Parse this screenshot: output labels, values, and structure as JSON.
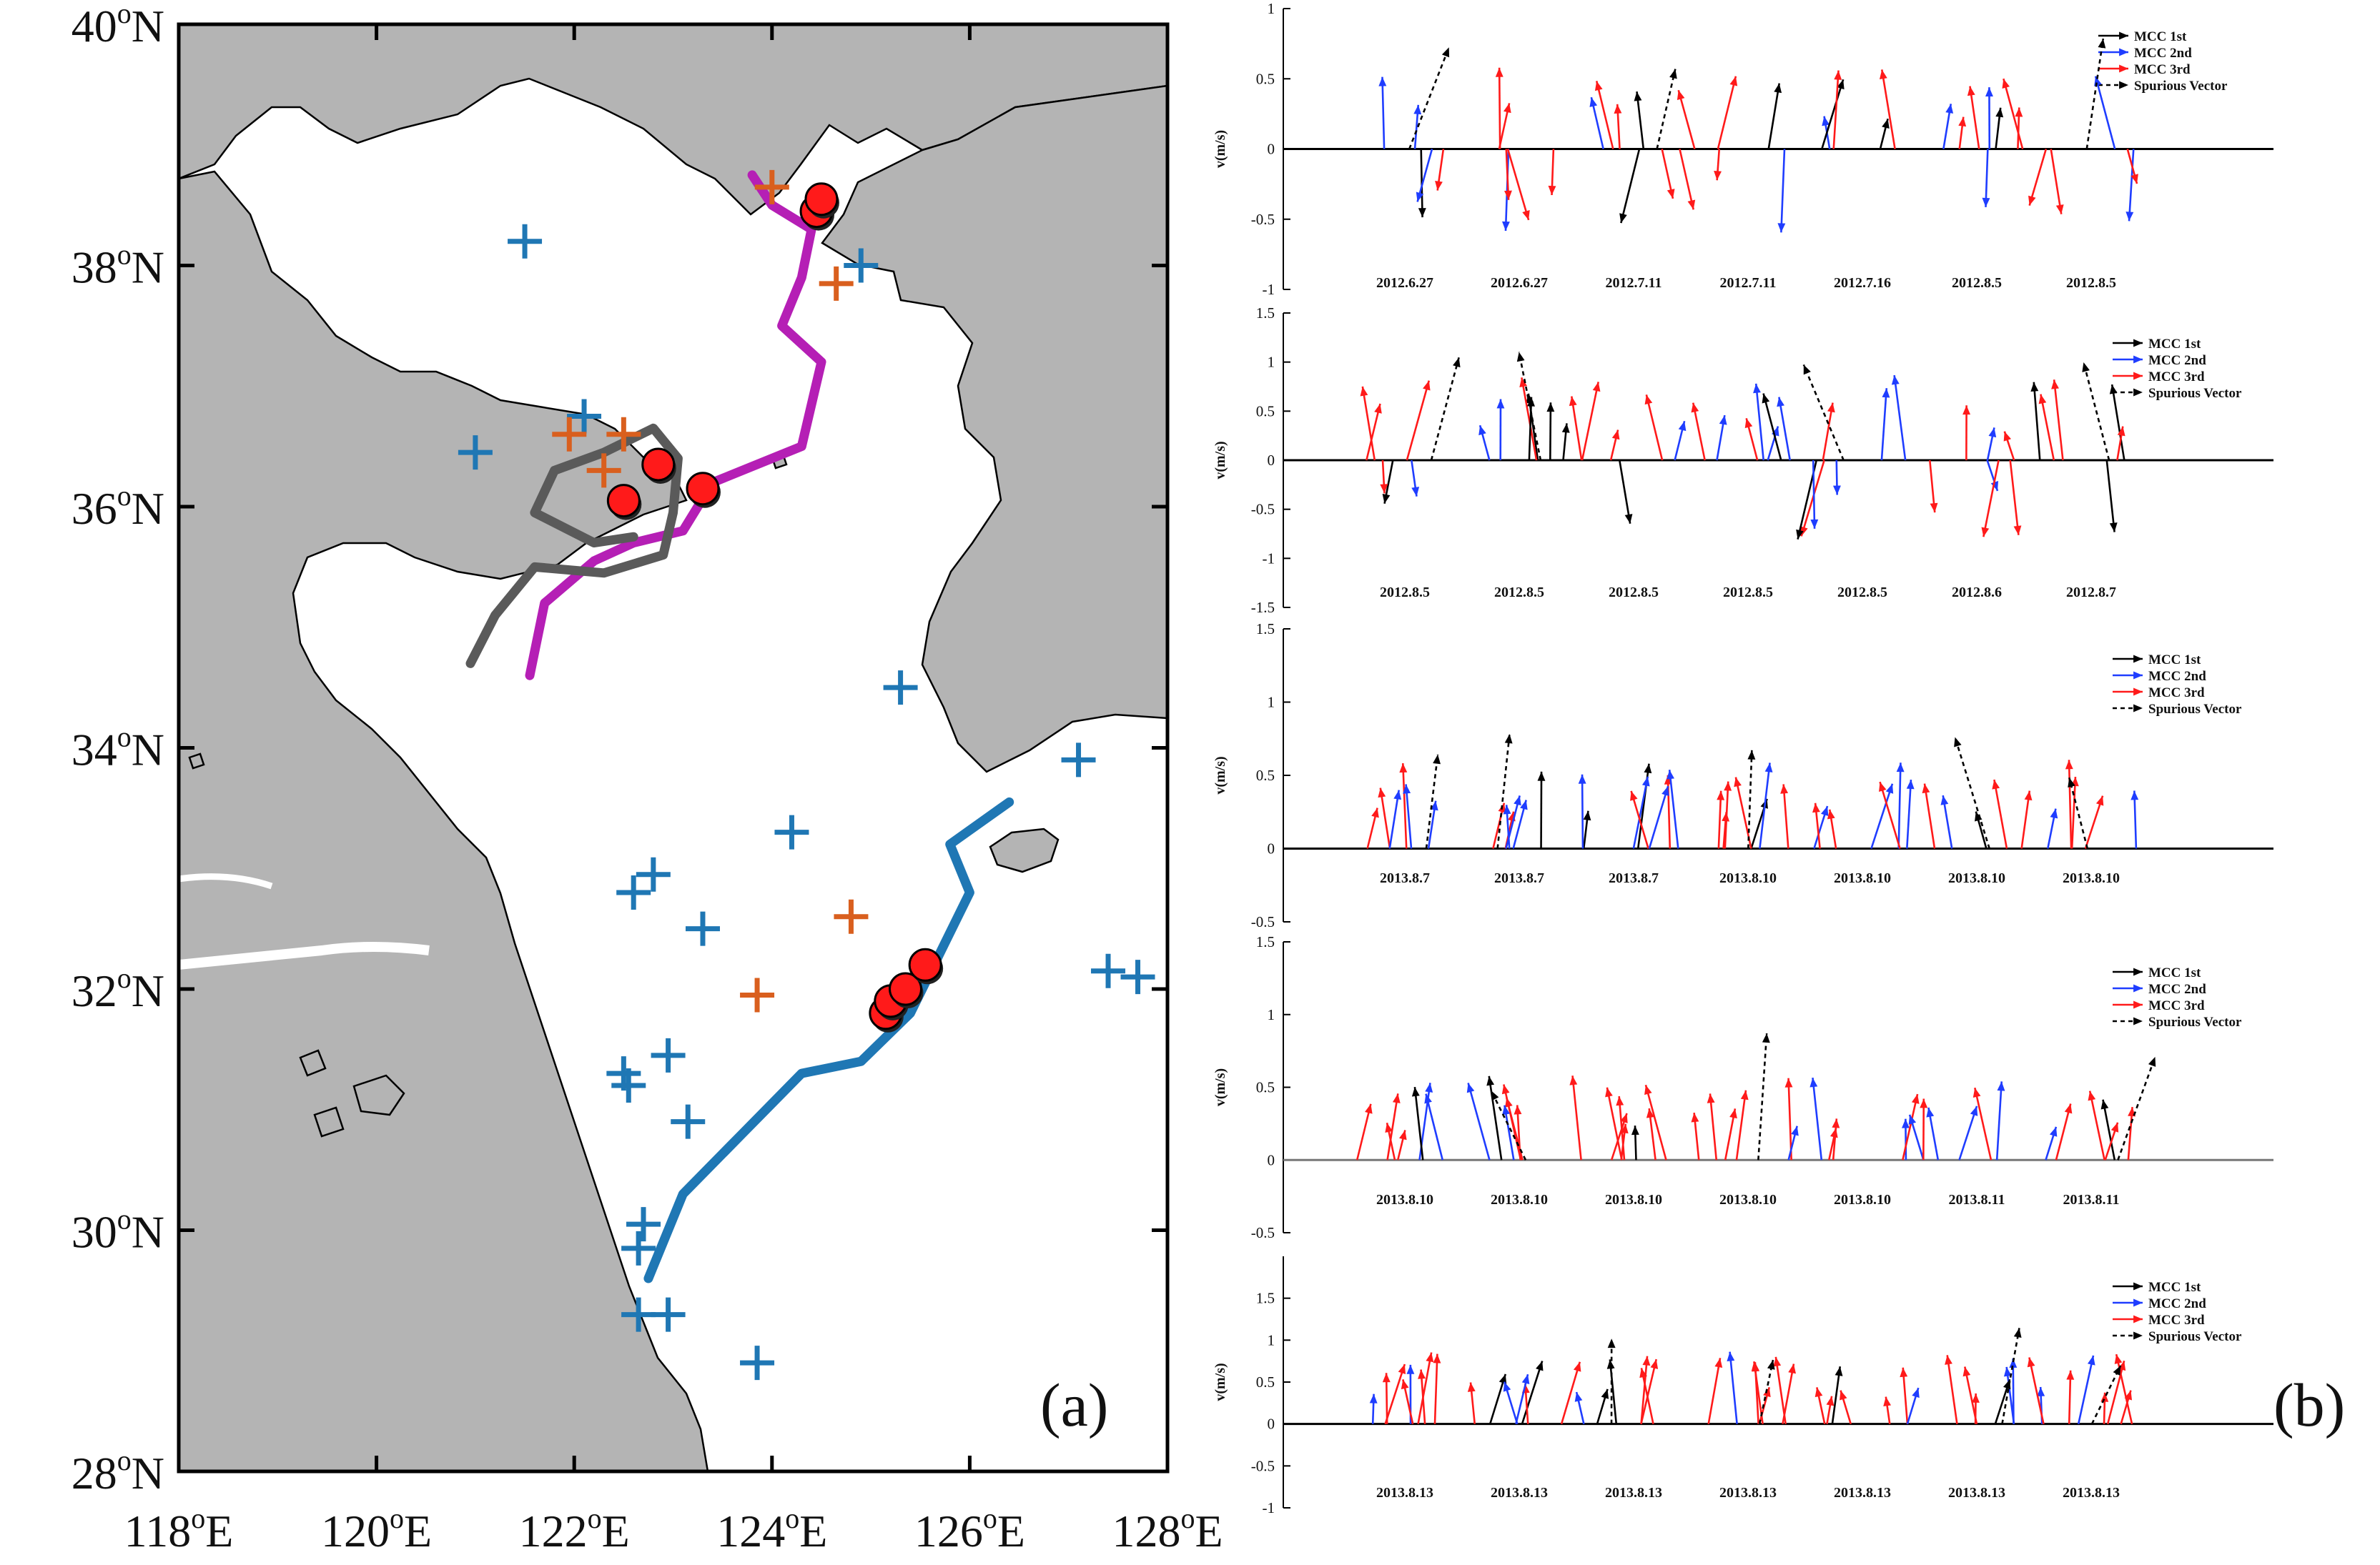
{
  "map": {
    "panel_label": "(a)",
    "lat_ticks": [
      {
        "v": 40,
        "num": "40",
        "sup": "o",
        "hem": "N"
      },
      {
        "v": 38,
        "num": "38",
        "sup": "o",
        "hem": "N"
      },
      {
        "v": 36,
        "num": "36",
        "sup": "o",
        "hem": "N"
      },
      {
        "v": 34,
        "num": "34",
        "sup": "o",
        "hem": "N"
      },
      {
        "v": 32,
        "num": "32",
        "sup": "o",
        "hem": "N"
      },
      {
        "v": 30,
        "num": "30",
        "sup": "o",
        "hem": "N"
      },
      {
        "v": 28,
        "num": "28",
        "sup": "o",
        "hem": "N"
      }
    ],
    "lon_ticks": [
      {
        "v": 118,
        "num": "118",
        "sup": "o",
        "hem": "E"
      },
      {
        "v": 120,
        "num": "120",
        "sup": "o",
        "hem": "E"
      },
      {
        "v": 122,
        "num": "122",
        "sup": "o",
        "hem": "E"
      },
      {
        "v": 124,
        "num": "124",
        "sup": "o",
        "hem": "E"
      },
      {
        "v": 126,
        "num": "126",
        "sup": "o",
        "hem": "E"
      },
      {
        "v": 128,
        "num": "128",
        "sup": "o",
        "hem": "E"
      }
    ],
    "colors": {
      "land": "#b4b4b4",
      "sea": "#ffffff",
      "coast": "#000000",
      "blue": "#1f77b4",
      "orange": "#d95f1e",
      "magenta": "#b51fb5",
      "gray": "#5a5a5a",
      "dot": "#ff1a1a"
    },
    "blue_crosses": [
      [
        121.5,
        38.2
      ],
      [
        124.9,
        38
      ],
      [
        121,
        36.45
      ],
      [
        122.1,
        36.75
      ],
      [
        127.1,
        33.9
      ],
      [
        125.3,
        34.5
      ],
      [
        124.2,
        33.3
      ],
      [
        122.8,
        32.95
      ],
      [
        122.6,
        32.8
      ],
      [
        123.3,
        32.5
      ],
      [
        127.4,
        32.15
      ],
      [
        127.7,
        32.1
      ],
      [
        122.5,
        31.3
      ],
      [
        122.55,
        31.2
      ],
      [
        122.95,
        31.45
      ],
      [
        123.15,
        30.9
      ],
      [
        122.7,
        30.05
      ],
      [
        122.65,
        29.85
      ],
      [
        122.65,
        29.3
      ],
      [
        122.95,
        29.3
      ],
      [
        123.85,
        28.9
      ]
    ],
    "orange_crosses": [
      [
        124,
        38.65
      ],
      [
        124.65,
        37.85
      ],
      [
        121.95,
        36.6
      ],
      [
        122.5,
        36.6
      ],
      [
        122.3,
        36.3
      ],
      [
        124.8,
        32.6
      ],
      [
        123.85,
        31.95
      ]
    ],
    "red_dots": [
      [
        124.45,
        38.45
      ],
      [
        124.5,
        38.55
      ],
      [
        122.5,
        36.05
      ],
      [
        122.85,
        36.35
      ],
      [
        123.3,
        36.15
      ],
      [
        125.15,
        31.8
      ],
      [
        125.2,
        31.9
      ],
      [
        125.35,
        32
      ],
      [
        125.55,
        32.2
      ]
    ],
    "tracks": {
      "magenta": [
        [
          121.55,
          34.6
        ],
        [
          121.7,
          35.2
        ],
        [
          122.2,
          35.55
        ],
        [
          122.6,
          35.7
        ],
        [
          123.1,
          35.8
        ],
        [
          123.4,
          36.2
        ],
        [
          124.3,
          36.5
        ],
        [
          124.5,
          37.2
        ],
        [
          124.1,
          37.5
        ],
        [
          124.3,
          37.9
        ],
        [
          124.4,
          38.3
        ],
        [
          124,
          38.5
        ],
        [
          123.8,
          38.75
        ]
      ],
      "gray": [
        [
          120.95,
          34.7
        ],
        [
          121.2,
          35.1
        ],
        [
          121.6,
          35.5
        ],
        [
          122.3,
          35.45
        ],
        [
          122.9,
          35.6
        ],
        [
          123,
          35.95
        ],
        [
          123.05,
          36.4
        ],
        [
          122.8,
          36.65
        ],
        [
          122.3,
          36.45
        ],
        [
          121.8,
          36.3
        ],
        [
          121.6,
          35.95
        ],
        [
          122.2,
          35.7
        ],
        [
          122.6,
          35.75
        ]
      ],
      "blue": [
        [
          122.75,
          29.6
        ],
        [
          123.1,
          30.3
        ],
        [
          123.7,
          30.8
        ],
        [
          124.3,
          31.3
        ],
        [
          124.9,
          31.4
        ],
        [
          125.4,
          31.8
        ],
        [
          125.7,
          32.3
        ],
        [
          126,
          32.8
        ],
        [
          125.8,
          33.2
        ],
        [
          126.4,
          33.55
        ]
      ]
    }
  },
  "panel_b": {
    "panel_label": "(b)",
    "ylabel": "v(m/s)",
    "colors": {
      "mcc1": "#000000",
      "mcc2": "#1f3dff",
      "mcc3": "#ff1a1a",
      "spurious": "#000000"
    },
    "legend": [
      "MCC 1st",
      "MCC 2nd",
      "MCC 3rd",
      "Spurious Vector"
    ],
    "subplots": [
      {
        "ymin": -1,
        "ymax": 1,
        "ticks": [
          {
            "v": 1,
            "t": "1"
          },
          {
            "v": 0.5,
            "t": "0.5"
          },
          {
            "v": 0,
            "t": "0"
          },
          {
            "v": -0.5,
            "t": "-0.5"
          },
          {
            "v": -1,
            "t": "-1"
          }
        ],
        "dates": [
          "2012.6.27",
          "2012.6.27",
          "2012.7.11",
          "2012.7.11",
          "2012.7.16",
          "2012.8.5",
          "2012.8.5"
        ]
      },
      {
        "ymin": -1.5,
        "ymax": 1.5,
        "ticks": [
          {
            "v": 1.5,
            "t": "1.5"
          },
          {
            "v": 1,
            "t": "1"
          },
          {
            "v": 0.5,
            "t": "0.5"
          },
          {
            "v": 0,
            "t": "0"
          },
          {
            "v": -0.5,
            "t": "-0.5"
          },
          {
            "v": -1,
            "t": "-1"
          },
          {
            "v": -1.5,
            "t": "-1.5"
          }
        ],
        "dates": [
          "2012.8.5",
          "2012.8.5",
          "2012.8.5",
          "2012.8.5",
          "2012.8.5",
          "2012.8.6",
          "2012.8.7"
        ]
      },
      {
        "ymin": -0.5,
        "ymax": 1.5,
        "ticks": [
          {
            "v": 1.5,
            "t": "1.5"
          },
          {
            "v": 1,
            "t": "1"
          },
          {
            "v": 0.5,
            "t": "0.5"
          },
          {
            "v": 0,
            "t": "0"
          },
          {
            "v": -0.5,
            "t": "-0.5"
          }
        ],
        "dates": [
          "2013.8.7",
          "2013.8.7",
          "2013.8.7",
          "2013.8.10",
          "2013.8.10",
          "2013.8.10",
          "2013.8.10"
        ]
      },
      {
        "ymin": -0.5,
        "ymax": 1.5,
        "ticks": [
          {
            "v": 1.5,
            "t": "1.5"
          },
          {
            "v": 1,
            "t": "1"
          },
          {
            "v": 0.5,
            "t": "0.5"
          },
          {
            "v": 0,
            "t": "0"
          },
          {
            "v": -0.5,
            "t": "-0.5"
          }
        ],
        "dates": [
          "2013.8.10",
          "2013.8.10",
          "2013.8.10",
          "2013.8.10",
          "2013.8.10",
          "2013.8.11",
          "2013.8.11"
        ]
      },
      {
        "ymin": -1,
        "ymax": 2,
        "ticks": [
          {
            "v": 1.5,
            "t": "1.5"
          },
          {
            "v": 1,
            "t": "1"
          },
          {
            "v": 0.5,
            "t": "0.5"
          },
          {
            "v": 0,
            "t": "0"
          },
          {
            "v": -0.5,
            "t": "-0.5"
          },
          {
            "v": -1,
            "t": "-1"
          }
        ],
        "dates": [
          "2013.8.13",
          "2013.8.13",
          "2013.8.13",
          "2013.8.13",
          "2013.8.13",
          "2013.8.13",
          "2013.8.13"
        ]
      }
    ]
  }
}
